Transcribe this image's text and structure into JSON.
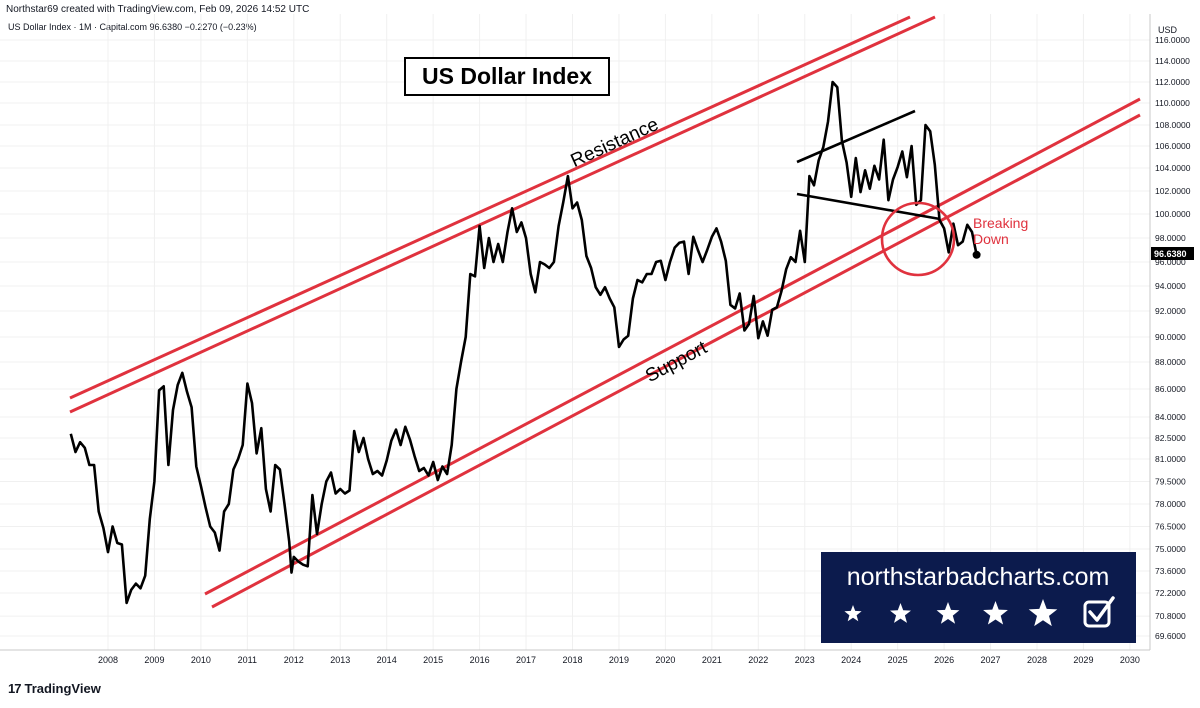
{
  "header": {
    "credit": "Northstar69 created with TradingView.com, Feb 09, 2026 14:52 UTC",
    "symbol_line": "US Dollar Index · 1M · Capital.com  96.6380  −0.2270 (−0.23%)"
  },
  "footer": {
    "logo_text": "TradingView",
    "logo_mark": "17"
  },
  "watermark": {
    "site": "northstarbadcharts.com",
    "stars": 5,
    "background": "#0c1b4d"
  },
  "colors": {
    "channel": "#e0323e",
    "price": "#000000",
    "grid": "#e6e6e6"
  },
  "chart_data": {
    "type": "line",
    "title": "US Dollar Index",
    "ylabel": "USD",
    "current_value": "96.6380",
    "x_ticks": [
      "2008",
      "2009",
      "2010",
      "2011",
      "2012",
      "2013",
      "2014",
      "2015",
      "2016",
      "2017",
      "2018",
      "2019",
      "2020",
      "2021",
      "2022",
      "2023",
      "2024",
      "2025",
      "2026",
      "2027",
      "2028",
      "2029",
      "2030"
    ],
    "y_ticks": [
      "116.0000",
      "114.0000",
      "112.0000",
      "110.0000",
      "108.0000",
      "106.0000",
      "104.0000",
      "102.0000",
      "100.0000",
      "98.0000",
      "96.0000",
      "94.0000",
      "92.0000",
      "90.0000",
      "88.0000",
      "86.0000",
      "84.0000",
      "82.5000",
      "81.0000",
      "79.5000",
      "78.0000",
      "76.5000",
      "75.0000",
      "73.6000",
      "72.2000",
      "70.8000",
      "69.6000"
    ],
    "ylim": [
      69.0,
      117.0
    ],
    "series": [
      {
        "values": [
          [
            2007.2,
            82.8
          ],
          [
            2007.3,
            81.5
          ],
          [
            2007.4,
            82.2
          ],
          [
            2007.5,
            81.8
          ],
          [
            2007.6,
            80.6
          ],
          [
            2007.7,
            80.6
          ],
          [
            2007.8,
            77.5
          ],
          [
            2007.9,
            76.4
          ],
          [
            2008.0,
            74.8
          ],
          [
            2008.1,
            76.5
          ],
          [
            2008.2,
            75.4
          ],
          [
            2008.3,
            75.3
          ],
          [
            2008.4,
            71.6
          ],
          [
            2008.5,
            72.4
          ],
          [
            2008.6,
            72.8
          ],
          [
            2008.7,
            72.5
          ],
          [
            2008.8,
            73.3
          ],
          [
            2008.9,
            77.0
          ],
          [
            2009.0,
            79.5
          ],
          [
            2009.1,
            85.9
          ],
          [
            2009.2,
            86.2
          ],
          [
            2009.3,
            80.6
          ],
          [
            2009.4,
            84.5
          ],
          [
            2009.5,
            86.3
          ],
          [
            2009.6,
            87.2
          ],
          [
            2009.7,
            85.8
          ],
          [
            2009.8,
            84.7
          ],
          [
            2009.9,
            80.5
          ],
          [
            2010.0,
            79.2
          ],
          [
            2010.1,
            77.8
          ],
          [
            2010.2,
            76.5
          ],
          [
            2010.3,
            76.1
          ],
          [
            2010.4,
            74.9
          ],
          [
            2010.5,
            77.5
          ],
          [
            2010.6,
            78.0
          ],
          [
            2010.7,
            80.3
          ],
          [
            2010.8,
            81.0
          ],
          [
            2010.9,
            82.0
          ],
          [
            2011.0,
            86.4
          ],
          [
            2011.1,
            85.0
          ],
          [
            2011.2,
            81.4
          ],
          [
            2011.3,
            83.2
          ],
          [
            2011.4,
            79.0
          ],
          [
            2011.5,
            77.5
          ],
          [
            2011.6,
            80.6
          ],
          [
            2011.7,
            80.3
          ],
          [
            2011.8,
            78.0
          ],
          [
            2011.9,
            75.5
          ],
          [
            2011.95,
            73.5
          ],
          [
            2012.0,
            74.5
          ],
          [
            2012.1,
            74.2
          ],
          [
            2012.2,
            74.0
          ],
          [
            2012.3,
            73.9
          ],
          [
            2012.4,
            78.6
          ],
          [
            2012.5,
            76.0
          ],
          [
            2012.6,
            78.0
          ],
          [
            2012.7,
            79.5
          ],
          [
            2012.8,
            80.1
          ],
          [
            2012.9,
            78.7
          ],
          [
            2013.0,
            79.0
          ],
          [
            2013.1,
            78.7
          ],
          [
            2013.2,
            78.9
          ],
          [
            2013.3,
            83.0
          ],
          [
            2013.4,
            81.5
          ],
          [
            2013.5,
            82.5
          ],
          [
            2013.6,
            81.0
          ],
          [
            2013.7,
            80.0
          ],
          [
            2013.8,
            80.2
          ],
          [
            2013.9,
            79.9
          ],
          [
            2014.0,
            80.9
          ],
          [
            2014.1,
            82.3
          ],
          [
            2014.2,
            83.1
          ],
          [
            2014.3,
            82.0
          ],
          [
            2014.4,
            83.3
          ],
          [
            2014.5,
            82.4
          ],
          [
            2014.6,
            81.2
          ],
          [
            2014.7,
            80.2
          ],
          [
            2014.8,
            80.4
          ],
          [
            2014.9,
            79.9
          ],
          [
            2015.0,
            80.8
          ],
          [
            2015.1,
            79.6
          ],
          [
            2015.2,
            80.5
          ],
          [
            2015.3,
            80.0
          ],
          [
            2015.4,
            82.0
          ],
          [
            2015.5,
            86.0
          ],
          [
            2015.6,
            88.0
          ],
          [
            2015.7,
            90.0
          ],
          [
            2015.8,
            95.0
          ],
          [
            2015.9,
            94.8
          ],
          [
            2016.0,
            99.0
          ],
          [
            2016.1,
            95.5
          ],
          [
            2016.2,
            98.0
          ],
          [
            2016.3,
            96.0
          ],
          [
            2016.4,
            97.5
          ],
          [
            2016.5,
            96.0
          ],
          [
            2016.6,
            98.5
          ],
          [
            2016.7,
            100.5
          ],
          [
            2016.8,
            98.5
          ],
          [
            2016.9,
            99.3
          ],
          [
            2017.0,
            98.0
          ],
          [
            2017.1,
            95.0
          ],
          [
            2017.2,
            93.5
          ],
          [
            2017.3,
            96.0
          ],
          [
            2017.4,
            95.8
          ],
          [
            2017.5,
            95.5
          ],
          [
            2017.6,
            96.0
          ],
          [
            2017.7,
            99.0
          ],
          [
            2017.8,
            101.0
          ],
          [
            2017.9,
            103.3
          ],
          [
            2018.0,
            100.5
          ],
          [
            2018.1,
            101.0
          ],
          [
            2018.2,
            99.5
          ],
          [
            2018.3,
            96.5
          ],
          [
            2018.4,
            95.5
          ],
          [
            2018.5,
            93.9
          ],
          [
            2018.6,
            93.3
          ],
          [
            2018.7,
            93.9
          ],
          [
            2018.8,
            93.0
          ],
          [
            2018.9,
            92.3
          ],
          [
            2019.0,
            89.2
          ],
          [
            2019.1,
            89.8
          ],
          [
            2019.2,
            90.1
          ],
          [
            2019.3,
            93.0
          ],
          [
            2019.4,
            94.5
          ],
          [
            2019.5,
            94.3
          ],
          [
            2019.6,
            95.0
          ],
          [
            2019.7,
            95.0
          ],
          [
            2019.8,
            96.0
          ],
          [
            2019.9,
            96.1
          ],
          [
            2020.0,
            94.5
          ],
          [
            2020.1,
            96.0
          ],
          [
            2020.2,
            97.2
          ],
          [
            2020.3,
            97.6
          ],
          [
            2020.4,
            97.7
          ],
          [
            2020.5,
            95.0
          ],
          [
            2020.6,
            98.1
          ],
          [
            2020.7,
            97.0
          ],
          [
            2020.8,
            96.0
          ],
          [
            2020.9,
            97.0
          ],
          [
            2021.0,
            98.1
          ],
          [
            2021.1,
            98.8
          ],
          [
            2021.2,
            97.7
          ],
          [
            2021.3,
            96.1
          ],
          [
            2021.4,
            92.5
          ],
          [
            2021.5,
            92.2
          ],
          [
            2021.6,
            93.4
          ],
          [
            2021.7,
            90.5
          ],
          [
            2021.8,
            91.0
          ],
          [
            2021.9,
            93.2
          ],
          [
            2022.0,
            89.9
          ],
          [
            2022.1,
            91.2
          ],
          [
            2022.2,
            90.1
          ],
          [
            2022.3,
            92.1
          ],
          [
            2022.4,
            92.3
          ],
          [
            2022.5,
            93.6
          ],
          [
            2022.6,
            95.4
          ],
          [
            2022.7,
            96.4
          ],
          [
            2022.8,
            96.0
          ],
          [
            2022.9,
            98.6
          ],
          [
            2023.0,
            96.0
          ],
          [
            2023.1,
            103.3
          ],
          [
            2023.2,
            102.5
          ],
          [
            2023.3,
            104.7
          ],
          [
            2023.4,
            105.9
          ],
          [
            2023.5,
            108.3
          ],
          [
            2023.6,
            112.0
          ],
          [
            2023.7,
            111.5
          ],
          [
            2023.8,
            106.5
          ],
          [
            2023.9,
            104.5
          ],
          [
            2024.0,
            101.5
          ],
          [
            2024.1,
            104.9
          ],
          [
            2024.2,
            101.9
          ],
          [
            2024.3,
            103.8
          ],
          [
            2024.4,
            102.2
          ],
          [
            2024.5,
            104.2
          ],
          [
            2024.6,
            103.0
          ],
          [
            2024.7,
            106.6
          ],
          [
            2024.8,
            101.2
          ],
          [
            2024.9,
            103.0
          ],
          [
            2025.0,
            104.1
          ],
          [
            2025.1,
            105.5
          ],
          [
            2025.2,
            103.2
          ],
          [
            2025.3,
            106.0
          ],
          [
            2025.4,
            100.8
          ],
          [
            2025.5,
            101.2
          ],
          [
            2025.6,
            108.0
          ],
          [
            2025.7,
            107.4
          ],
          [
            2025.8,
            104.3
          ],
          [
            2025.9,
            99.5
          ],
          [
            2026.0,
            98.8
          ],
          [
            2026.1,
            96.8
          ],
          [
            2026.2,
            99.2
          ],
          [
            2026.3,
            97.4
          ],
          [
            2026.4,
            97.7
          ],
          [
            2026.5,
            99.1
          ],
          [
            2026.6,
            98.5
          ],
          [
            2026.7,
            96.6
          ]
        ]
      }
    ],
    "annotations": {
      "title_box": "US Dollar Index",
      "resistance": "Resistance",
      "support": "Support",
      "breaking_1": "Breaking",
      "breaking_2": "Down"
    }
  }
}
